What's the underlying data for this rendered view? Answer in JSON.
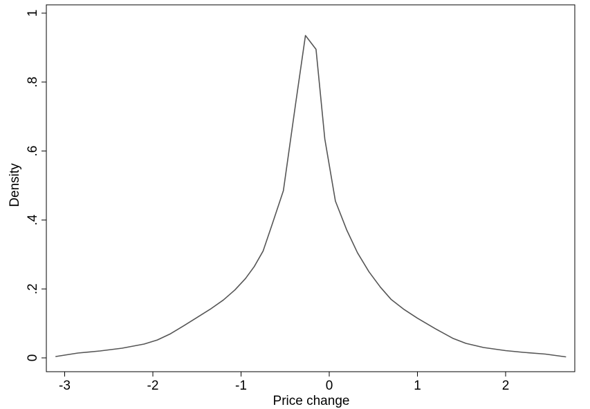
{
  "chart_data": {
    "type": "line",
    "xlabel": "Price change",
    "ylabel": "Density",
    "xlim": [
      -3.15,
      2.75
    ],
    "ylim": [
      0,
      1
    ],
    "x_ticks": [
      -3,
      -2,
      -1,
      0,
      1,
      2
    ],
    "x_tick_labels": [
      "-3",
      "-2",
      "-1",
      "0",
      "1",
      "2"
    ],
    "y_ticks": [
      0,
      0.2,
      0.4,
      0.6,
      0.8,
      1
    ],
    "y_tick_labels": [
      "0",
      ".2",
      ".4",
      ".6",
      ".8",
      "1"
    ],
    "grid": false,
    "line_color": "#555555",
    "series": [
      {
        "x": [
          -3.1,
          -2.85,
          -2.6,
          -2.35,
          -2.1,
          -1.95,
          -1.8,
          -1.65,
          -1.5,
          -1.35,
          -1.2,
          -1.07,
          -0.95,
          -0.85,
          -0.75,
          -0.65,
          -0.52,
          -0.38,
          -0.27,
          -0.15,
          -0.05,
          0.07,
          0.2,
          0.32,
          0.45,
          0.58,
          0.7,
          0.85,
          1.0,
          1.2,
          1.4,
          1.55,
          1.75,
          2.0,
          2.2,
          2.45,
          2.68
        ],
        "y": [
          0.004,
          0.014,
          0.02,
          0.028,
          0.04,
          0.052,
          0.07,
          0.093,
          0.117,
          0.141,
          0.168,
          0.197,
          0.23,
          0.265,
          0.31,
          0.385,
          0.485,
          0.74,
          0.935,
          0.895,
          0.635,
          0.455,
          0.37,
          0.305,
          0.25,
          0.205,
          0.17,
          0.14,
          0.115,
          0.085,
          0.057,
          0.042,
          0.03,
          0.021,
          0.016,
          0.011,
          0.003
        ]
      }
    ]
  }
}
